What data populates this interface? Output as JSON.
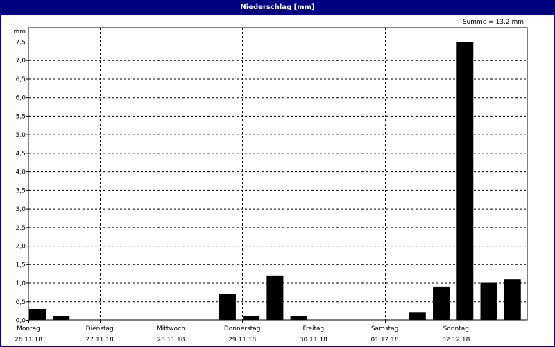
{
  "window": {
    "title": "Niederschlag [mm]"
  },
  "summary": "Summe = 13,2 mm",
  "chart_data": {
    "type": "bar",
    "title": "Niederschlag [mm]",
    "ylabel": "mm",
    "ylim": [
      0,
      7.5
    ],
    "yticks": [
      "0,0",
      "0,5",
      "1,0",
      "1,5",
      "2,0",
      "2,5",
      "3,0",
      "3,5",
      "4,0",
      "4,5",
      "5,0",
      "5,5",
      "6,0",
      "6,5",
      "7,0",
      "7,5"
    ],
    "grid": true,
    "days": [
      {
        "name": "Montag",
        "date": "26.11.18"
      },
      {
        "name": "Dienstag",
        "date": "27.11.18"
      },
      {
        "name": "Mittwoch",
        "date": "28.11.18"
      },
      {
        "name": "Donnerstag",
        "date": "29.11.18"
      },
      {
        "name": "Freitag",
        "date": "30.11.18"
      },
      {
        "name": "Samstag",
        "date": "01.12.18"
      },
      {
        "name": "Sonntag",
        "date": "02.12.18"
      }
    ],
    "bars_per_day": 3,
    "values": [
      0.3,
      0.1,
      0,
      0,
      0,
      0,
      0,
      0,
      0.7,
      0.1,
      1.2,
      0.1,
      0,
      0,
      0,
      0,
      0.2,
      0.9,
      7.5,
      1.0,
      1.1
    ],
    "bar_color": "#000000"
  }
}
